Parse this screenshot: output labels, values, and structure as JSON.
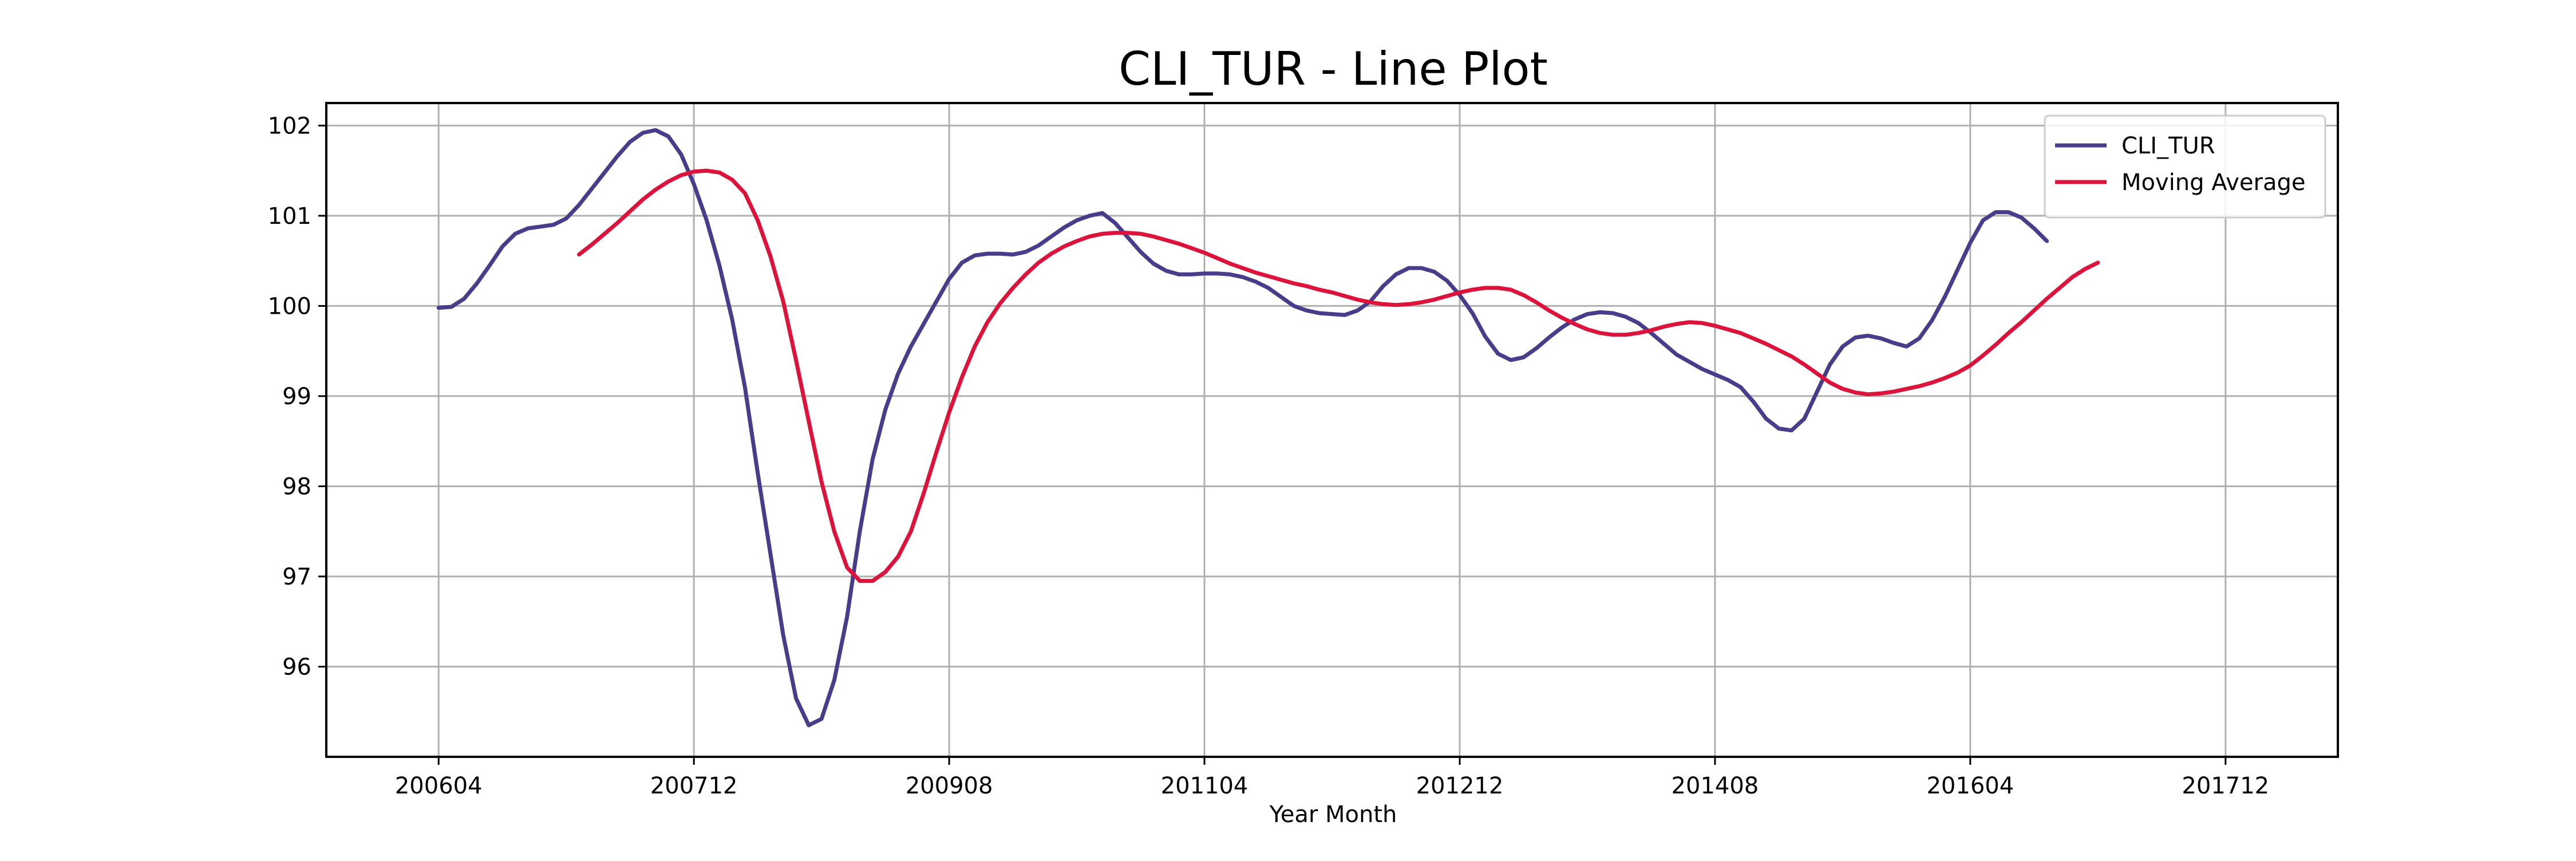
{
  "chart_data": {
    "type": "line",
    "title": "CLI_TUR - Line Plot",
    "xlabel": "Year Month",
    "ylabel": "",
    "x_ticks": [
      "200604",
      "200712",
      "200908",
      "201104",
      "201212",
      "201408",
      "201604",
      "201712"
    ],
    "y_ticks": [
      96,
      97,
      98,
      99,
      100,
      101,
      102
    ],
    "ylim": [
      95.0,
      102.25
    ],
    "grid": true,
    "legend_position": "top-right",
    "start_month": "200604",
    "series": [
      {
        "name": "CLI_TUR",
        "color": "#483D8B",
        "start_index": 0,
        "values": [
          99.98,
          99.99,
          100.08,
          100.25,
          100.45,
          100.66,
          100.8,
          100.86,
          100.88,
          100.9,
          100.97,
          101.12,
          101.3,
          101.48,
          101.66,
          101.82,
          101.92,
          101.95,
          101.88,
          101.68,
          101.35,
          100.95,
          100.45,
          99.85,
          99.1,
          98.15,
          97.25,
          96.35,
          95.65,
          95.35,
          95.42,
          95.85,
          96.55,
          97.5,
          98.3,
          98.85,
          99.25,
          99.55,
          99.8,
          100.05,
          100.3,
          100.48,
          100.56,
          100.58,
          100.58,
          100.57,
          100.6,
          100.67,
          100.77,
          100.87,
          100.95,
          101.0,
          101.03,
          100.92,
          100.76,
          100.6,
          100.47,
          100.39,
          100.35,
          100.35,
          100.36,
          100.36,
          100.35,
          100.32,
          100.27,
          100.2,
          100.1,
          100.0,
          99.95,
          99.92,
          99.91,
          99.9,
          99.95,
          100.05,
          100.22,
          100.35,
          100.42,
          100.42,
          100.38,
          100.28,
          100.12,
          99.92,
          99.66,
          99.47,
          99.4,
          99.43,
          99.53,
          99.65,
          99.76,
          99.85,
          99.91,
          99.93,
          99.92,
          99.88,
          99.81,
          99.7,
          99.58,
          99.46,
          99.38,
          99.3,
          99.24,
          99.18,
          99.1,
          98.94,
          98.75,
          98.64,
          98.62,
          98.75,
          99.05,
          99.35,
          99.55,
          99.65,
          99.67,
          99.64,
          99.59,
          99.55,
          99.64,
          99.84,
          100.1,
          100.4,
          100.7,
          100.95,
          101.04,
          101.04,
          100.98,
          100.86,
          100.72
        ]
      },
      {
        "name": "Moving Average",
        "color": "#DC143C",
        "start_index": 11,
        "values": [
          100.57,
          100.68,
          100.8,
          100.92,
          101.05,
          101.18,
          101.29,
          101.38,
          101.45,
          101.49,
          101.5,
          101.48,
          101.4,
          101.25,
          100.95,
          100.55,
          100.05,
          99.4,
          98.72,
          98.05,
          97.5,
          97.1,
          96.95,
          96.95,
          97.05,
          97.22,
          97.5,
          97.92,
          98.38,
          98.82,
          99.21,
          99.55,
          99.82,
          100.03,
          100.2,
          100.35,
          100.48,
          100.58,
          100.66,
          100.72,
          100.77,
          100.8,
          100.81,
          100.81,
          100.8,
          100.77,
          100.73,
          100.69,
          100.64,
          100.59,
          100.53,
          100.47,
          100.42,
          100.37,
          100.33,
          100.29,
          100.25,
          100.22,
          100.18,
          100.15,
          100.11,
          100.07,
          100.04,
          100.02,
          100.01,
          100.02,
          100.04,
          100.07,
          100.11,
          100.15,
          100.18,
          100.2,
          100.2,
          100.18,
          100.12,
          100.04,
          99.95,
          99.87,
          99.8,
          99.74,
          99.7,
          99.68,
          99.68,
          99.7,
          99.73,
          99.77,
          99.8,
          99.82,
          99.81,
          99.78,
          99.74,
          99.7,
          99.64,
          99.58,
          99.51,
          99.44,
          99.35,
          99.25,
          99.15,
          99.08,
          99.04,
          99.02,
          99.03,
          99.05,
          99.08,
          99.11,
          99.15,
          99.2,
          99.26,
          99.34,
          99.45,
          99.57,
          99.7,
          99.82,
          99.95,
          100.08,
          100.2,
          100.32,
          100.41,
          100.48
        ]
      }
    ]
  }
}
